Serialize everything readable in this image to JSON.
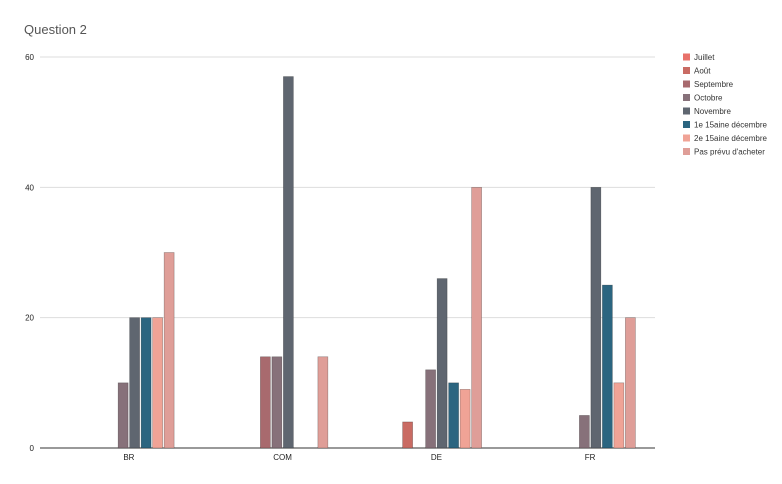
{
  "chart_data": {
    "type": "bar",
    "title": "Question 2",
    "categories": [
      "BR",
      "COM",
      "DE",
      "FR"
    ],
    "ylim": [
      0,
      60
    ],
    "yticks": [
      0,
      20,
      40,
      60
    ],
    "grid": true,
    "legend_position": "right",
    "series": [
      {
        "name": "Juillet",
        "color": "#e8716a",
        "values": [
          0,
          0,
          0,
          0
        ]
      },
      {
        "name": "Août",
        "color": "#c96b63",
        "values": [
          0,
          0,
          4,
          0
        ]
      },
      {
        "name": "Septembre",
        "color": "#a86a6e",
        "values": [
          0,
          14,
          0,
          0
        ]
      },
      {
        "name": "Octobre",
        "color": "#87717a",
        "values": [
          10,
          14,
          12,
          5
        ]
      },
      {
        "name": "Novembre",
        "color": "#5f6670",
        "values": [
          20,
          57,
          26,
          40
        ]
      },
      {
        "name": "1e 15aine décembre",
        "color": "#2b6580",
        "values": [
          20,
          0,
          10,
          25
        ]
      },
      {
        "name": "2e 15aine décembre",
        "color": "#f0a396",
        "values": [
          20,
          0,
          9,
          10
        ]
      },
      {
        "name": "Pas prévu d'acheter",
        "color": "#df9e98",
        "values": [
          30,
          14,
          40,
          20
        ]
      }
    ]
  }
}
